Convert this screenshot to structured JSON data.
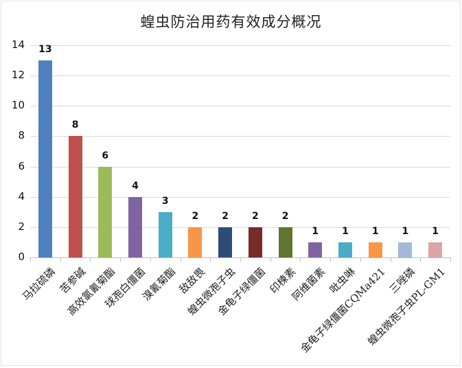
{
  "chart_data": {
    "type": "bar",
    "title": "蝗虫防治用药有效成分概况",
    "xlabel": "",
    "ylabel": "",
    "ylim": [
      0,
      14
    ],
    "yticks": [
      0,
      2,
      4,
      6,
      8,
      10,
      12,
      14
    ],
    "grid": true,
    "legend": "none",
    "data_labels": true,
    "categories": [
      "马拉硫磷",
      "苦参碱",
      "高效氯氰菊酯",
      "球孢白僵菌",
      "溴氰菊酯",
      "敌敌畏",
      "蝗虫微孢子虫",
      "金龟子绿僵菌",
      "印楝素",
      "阿维菌素",
      "吡虫啉",
      "金龟子绿僵菌CQMa421",
      "三唑磷",
      "蝗虫微孢子虫PL-GM1"
    ],
    "values": [
      13,
      8,
      6,
      4,
      3,
      2,
      2,
      2,
      2,
      1,
      1,
      1,
      1,
      1
    ],
    "colors": [
      "#4f81bd",
      "#c0504d",
      "#9bbb59",
      "#8064a2",
      "#4bacc6",
      "#f79646",
      "#2c4d75",
      "#772c2a",
      "#5f7530",
      "#8064a2",
      "#4bacc6",
      "#f79646",
      "#a5b8d8",
      "#d9a5a5"
    ]
  },
  "title": "蝗虫防治用药有效成分概况",
  "y_axis": {
    "ticks": [
      "0",
      "2",
      "4",
      "6",
      "8",
      "10",
      "12",
      "14"
    ]
  },
  "bars": [
    {
      "label": "马拉硫磷",
      "value": "13"
    },
    {
      "label": "苦参碱",
      "value": "8"
    },
    {
      "label": "高效氯氰菊酯",
      "value": "6"
    },
    {
      "label": "球孢白僵菌",
      "value": "4"
    },
    {
      "label": "溴氰菊酯",
      "value": "3"
    },
    {
      "label": "敌敌畏",
      "value": "2"
    },
    {
      "label": "蝗虫微孢子虫",
      "value": "2"
    },
    {
      "label": "金龟子绿僵菌",
      "value": "2"
    },
    {
      "label": "印楝素",
      "value": "2"
    },
    {
      "label": "阿维菌素",
      "value": "1"
    },
    {
      "label": "吡虫啉",
      "value": "1"
    },
    {
      "label": "金龟子绿僵菌CQMa421",
      "value": "1"
    },
    {
      "label": "三唑磷",
      "value": "1"
    },
    {
      "label": "蝗虫微孢子虫PL-GM1",
      "value": "1"
    }
  ]
}
